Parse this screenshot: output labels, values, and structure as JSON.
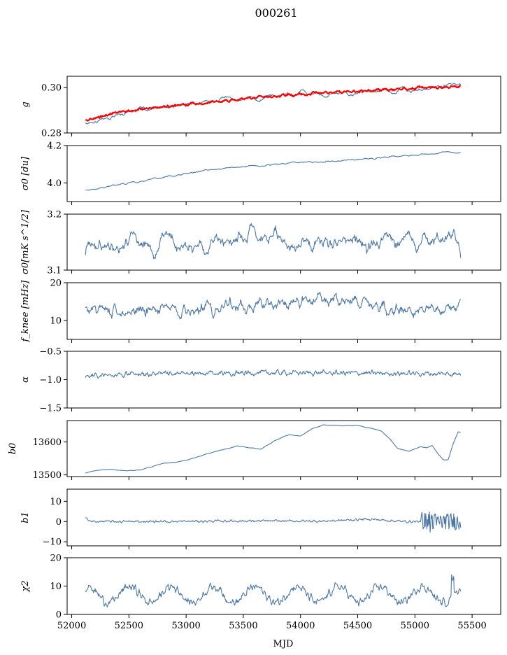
{
  "figure": {
    "title": "000261"
  },
  "chart_data": {
    "type": "line",
    "title": "000261",
    "xlabel": "MJD",
    "xlim": [
      51960,
      55750
    ],
    "x_ticks": [
      52000,
      52500,
      53000,
      53500,
      54000,
      54500,
      55000,
      55500
    ],
    "x_range": [
      52120,
      55400
    ],
    "panels": [
      {
        "id": "g",
        "ylabel": "g",
        "ylim": [
          0.28,
          0.305
        ],
        "y_ticks": [
          {
            "value": 0.28,
            "label": "0.28"
          },
          {
            "value": 0.3,
            "label": "0.30"
          }
        ],
        "series": [
          {
            "kind": "data",
            "color": "#4e79a7",
            "anchors": [
              [
                52120,
                0.2845
              ],
              [
                52300,
                0.287
              ],
              [
                52600,
                0.29
              ],
              [
                52900,
                0.292
              ],
              [
                53200,
                0.2935
              ],
              [
                53500,
                0.2945
              ],
              [
                53800,
                0.296
              ],
              [
                54100,
                0.297
              ],
              [
                54400,
                0.2975
              ],
              [
                54700,
                0.2985
              ],
              [
                55000,
                0.2995
              ],
              [
                55300,
                0.301
              ],
              [
                55400,
                0.3005
              ]
            ],
            "noise": 0.0012,
            "smooth": 7
          },
          {
            "kind": "model",
            "color": "#ff0000",
            "anchors": [
              [
                52120,
                0.2855
              ],
              [
                52400,
                0.289
              ],
              [
                52700,
                0.291
              ],
              [
                53000,
                0.2925
              ],
              [
                53300,
                0.294
              ],
              [
                53600,
                0.2955
              ],
              [
                53900,
                0.2968
              ],
              [
                54200,
                0.2978
              ],
              [
                54500,
                0.2985
              ],
              [
                54800,
                0.2992
              ],
              [
                55100,
                0.3
              ],
              [
                55400,
                0.3003
              ]
            ],
            "noise": 0.0005,
            "smooth": 2
          }
        ]
      },
      {
        "id": "sigma0",
        "ylabel": "σ0 [du]",
        "ylim": [
          3.9,
          4.2
        ],
        "y_ticks": [
          {
            "value": 4.0,
            "label": "4.0"
          },
          {
            "value": 4.2,
            "label": "4.2"
          }
        ],
        "series": [
          {
            "kind": "data",
            "color": "#4e79a7",
            "anchors": [
              [
                52120,
                3.96
              ],
              [
                52400,
                3.99
              ],
              [
                52800,
                4.03
              ],
              [
                53200,
                4.07
              ],
              [
                53600,
                4.09
              ],
              [
                54000,
                4.11
              ],
              [
                54400,
                4.12
              ],
              [
                54800,
                4.14
              ],
              [
                55100,
                4.155
              ],
              [
                55300,
                4.165
              ],
              [
                55400,
                4.16
              ]
            ],
            "noise": 0.004,
            "smooth": 3
          }
        ]
      },
      {
        "id": "sigma0_mks",
        "ylabel": "σ0[mK s^1/2]",
        "ylim": [
          3.1,
          3.2
        ],
        "y_ticks": [
          {
            "value": 3.1,
            "label": "3.1"
          },
          {
            "value": 3.2,
            "label": "3.2"
          }
        ],
        "series": [
          {
            "kind": "data",
            "color": "#4e79a7",
            "anchors": [
              [
                52120,
                3.153
              ],
              [
                52600,
                3.15
              ],
              [
                53000,
                3.148
              ],
              [
                53400,
                3.152
              ],
              [
                53800,
                3.149
              ],
              [
                54200,
                3.15
              ],
              [
                54600,
                3.147
              ],
              [
                55000,
                3.148
              ],
              [
                55400,
                3.146
              ]
            ],
            "noise": 0.018,
            "smooth": 6
          }
        ]
      },
      {
        "id": "fknee",
        "ylabel": "f_knee [mHz]",
        "ylim": [
          5,
          20
        ],
        "y_ticks": [
          {
            "value": 10,
            "label": "10"
          },
          {
            "value": 20,
            "label": "20"
          }
        ],
        "series": [
          {
            "kind": "data",
            "color": "#4e79a7",
            "anchors": [
              [
                52120,
                12.5
              ],
              [
                52500,
                12.8
              ],
              [
                53000,
                13.0
              ],
              [
                53500,
                13.8
              ],
              [
                54000,
                15.0
              ],
              [
                54300,
                15.8
              ],
              [
                54600,
                15.0
              ],
              [
                54900,
                12.5
              ],
              [
                55100,
                12.2
              ],
              [
                55300,
                12.5
              ],
              [
                55400,
                14.0
              ]
            ],
            "noise": 1.6,
            "smooth": 2
          }
        ]
      },
      {
        "id": "alpha",
        "ylabel": "α",
        "ylim": [
          -1.5,
          -0.5
        ],
        "y_ticks": [
          {
            "value": -1.5,
            "label": "−1.5"
          },
          {
            "value": -1.0,
            "label": "−1.0"
          },
          {
            "value": -0.5,
            "label": "−0.5"
          }
        ],
        "series": [
          {
            "kind": "data",
            "color": "#4e79a7",
            "anchors": [
              [
                52120,
                -0.92
              ],
              [
                52800,
                -0.9
              ],
              [
                53500,
                -0.88
              ],
              [
                54200,
                -0.88
              ],
              [
                54900,
                -0.89
              ],
              [
                55400,
                -0.9
              ]
            ],
            "noise": 0.04,
            "smooth": 1
          }
        ]
      },
      {
        "id": "b0",
        "ylabel": "b0",
        "ylim": [
          13495,
          13665
        ],
        "y_ticks": [
          {
            "value": 13500,
            "label": "13500"
          },
          {
            "value": 13600,
            "label": "13600"
          }
        ],
        "series": [
          {
            "kind": "data",
            "color": "#4e79a7",
            "anchors": [
              [
                52120,
                13507
              ],
              [
                52200,
                13513
              ],
              [
                52350,
                13518
              ],
              [
                52450,
                13512
              ],
              [
                52600,
                13515
              ],
              [
                52800,
                13535
              ],
              [
                52950,
                13540
              ],
              [
                53150,
                13560
              ],
              [
                53300,
                13575
              ],
              [
                53450,
                13588
              ],
              [
                53550,
                13583
              ],
              [
                53650,
                13578
              ],
              [
                53800,
                13608
              ],
              [
                53900,
                13622
              ],
              [
                54000,
                13618
              ],
              [
                54100,
                13640
              ],
              [
                54200,
                13652
              ],
              [
                54350,
                13650
              ],
              [
                54500,
                13650
              ],
              [
                54700,
                13635
              ],
              [
                54780,
                13610
              ],
              [
                54850,
                13580
              ],
              [
                54950,
                13572
              ],
              [
                55050,
                13586
              ],
              [
                55100,
                13582
              ],
              [
                55150,
                13590
              ],
              [
                55200,
                13565
              ],
              [
                55250,
                13545
              ],
              [
                55290,
                13545
              ],
              [
                55330,
                13590
              ],
              [
                55380,
                13632
              ],
              [
                55400,
                13630
              ]
            ],
            "noise": 0.8,
            "smooth": 4
          }
        ]
      },
      {
        "id": "b1",
        "ylabel": "b1",
        "ylim": [
          -12,
          16
        ],
        "y_ticks": [
          {
            "value": -10,
            "label": "−10"
          },
          {
            "value": 0,
            "label": "0"
          },
          {
            "value": 10,
            "label": "10"
          }
        ],
        "series": [
          {
            "kind": "data",
            "color": "#4e79a7",
            "anchors": [
              [
                52120,
                2.0
              ],
              [
                52160,
                0.0
              ],
              [
                52800,
                0.0
              ],
              [
                53500,
                0.3
              ],
              [
                54200,
                0.2
              ],
              [
                54600,
                1.2
              ],
              [
                54900,
                0.0
              ],
              [
                55400,
                0.0
              ]
            ],
            "noise": 0.5,
            "smooth": 1
          }
        ]
      },
      {
        "id": "chi2",
        "ylabel": "χ2",
        "ylim": [
          0,
          20
        ],
        "y_ticks": [
          {
            "value": 0,
            "label": "0"
          },
          {
            "value": 10,
            "label": "10"
          },
          {
            "value": 20,
            "label": "20"
          }
        ],
        "series": [
          {
            "kind": "data",
            "color": "#4e79a7",
            "anchors": [
              [
                52120,
                7
              ],
              [
                55400,
                7
              ]
            ],
            "noise": 1.3,
            "smooth": 1
          }
        ]
      }
    ]
  }
}
